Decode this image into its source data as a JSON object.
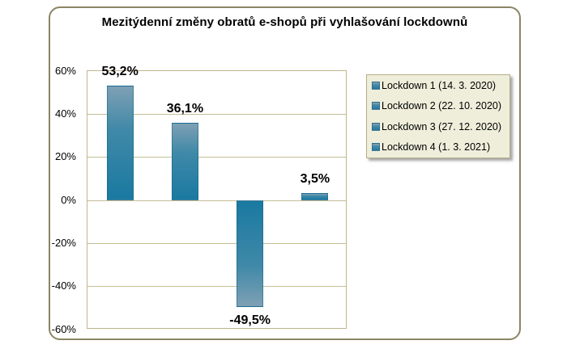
{
  "chart_data": {
    "type": "bar",
    "title": "Mezitýdenní změny obratů e-shopů při vyhlašování lockdownů",
    "categories": [
      "Lockdown 1 (14. 3. 2020)",
      "Lockdown 2 (22. 10. 2020)",
      "Lockdown 3 (27. 12. 2020)",
      "Lockdown 4 (1. 3. 2021)"
    ],
    "values": [
      53.2,
      36.1,
      -49.5,
      3.5
    ],
    "value_labels": [
      "53,2%",
      "36,1%",
      "-49,5%",
      "3,5%"
    ],
    "xlabel": "",
    "ylabel": "",
    "ylim": [
      -60,
      60
    ],
    "yticks": [
      {
        "value": 60,
        "label": "60%"
      },
      {
        "value": 40,
        "label": "40%"
      },
      {
        "value": 20,
        "label": "20%"
      },
      {
        "value": 0,
        "label": "0%"
      },
      {
        "value": -20,
        "label": "-20%"
      },
      {
        "value": -40,
        "label": "-40%"
      },
      {
        "value": -60,
        "label": "-60%"
      }
    ],
    "grid": true,
    "legend_position": "right",
    "legend": [
      "Lockdown 1 (14. 3. 2020)",
      "Lockdown 2 (22. 10. 2020)",
      "Lockdown 3 (27. 12. 2020)",
      "Lockdown 4 (1. 3. 2021)"
    ],
    "colors": {
      "bar_base": "#1a79a1",
      "bar_mid": "#4089a8",
      "bar_tip": "#7fa0b4",
      "gridline": "#c5bd94",
      "plot_border": "#bfb68c",
      "outer_border": "#8a8563",
      "legend_bg": "#eeeedb",
      "legend_border": "#b5ad85",
      "text": "#000000"
    }
  }
}
